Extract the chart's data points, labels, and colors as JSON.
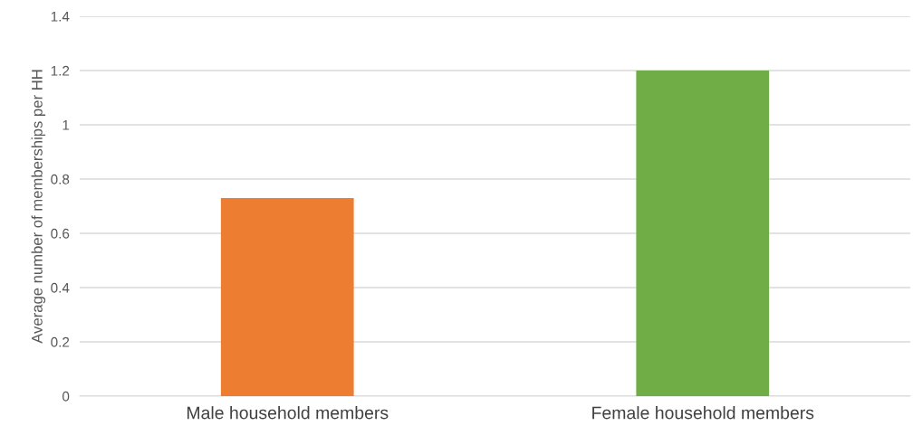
{
  "chart_data": {
    "type": "bar",
    "ylabel": "Average number of memberships per HH",
    "categories": [
      "Male household members",
      "Female household members"
    ],
    "values": [
      0.73,
      1.2
    ],
    "colors": [
      "#ed7d31",
      "#70ad47"
    ],
    "ylim": [
      0,
      1.4
    ],
    "yticks": [
      0,
      0.2,
      0.4,
      0.6,
      0.8,
      1,
      1.2,
      1.4
    ],
    "grid": "y",
    "legend": false
  }
}
